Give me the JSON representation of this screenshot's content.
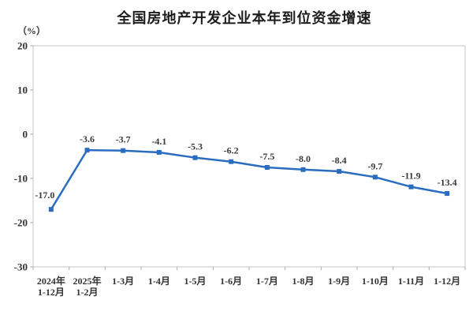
{
  "chart_data": {
    "type": "line",
    "title": "全国房地产开发企业本年到位资金增速",
    "unit_label": "（%）",
    "categories": [
      "2024年\n1-12月",
      "2025年\n1-2月",
      "1-3月",
      "1-4月",
      "1-5月",
      "1-6月",
      "1-7月",
      "1-8月",
      "1-9月",
      "1-10月",
      "1-11月",
      "1-12月"
    ],
    "values": [
      -17.0,
      -3.6,
      -3.7,
      -4.1,
      -5.3,
      -6.2,
      -7.5,
      -8.0,
      -8.4,
      -9.7,
      -11.9,
      -13.4
    ],
    "data_labels": [
      "-17.0",
      "-3.6",
      "-3.7",
      "-4.1",
      "-5.3",
      "-6.2",
      "-7.5",
      "-8.0",
      "-8.4",
      "-9.7",
      "-11.9",
      "-13.4"
    ],
    "ylim": [
      -30,
      20
    ],
    "yticks": [
      20,
      10,
      0,
      -10,
      -20,
      -30
    ],
    "grid": false,
    "legend": "none",
    "xlabel": "",
    "ylabel": "（%）",
    "colors": {
      "line": "#2A6DC0",
      "marker": "#2A6DC0",
      "axis_text": "#333333",
      "data_label_text": "#3a3a3a",
      "plot_border": "#c6c6c6",
      "tick": "#aaaaaa"
    },
    "marker_shape": "square"
  }
}
